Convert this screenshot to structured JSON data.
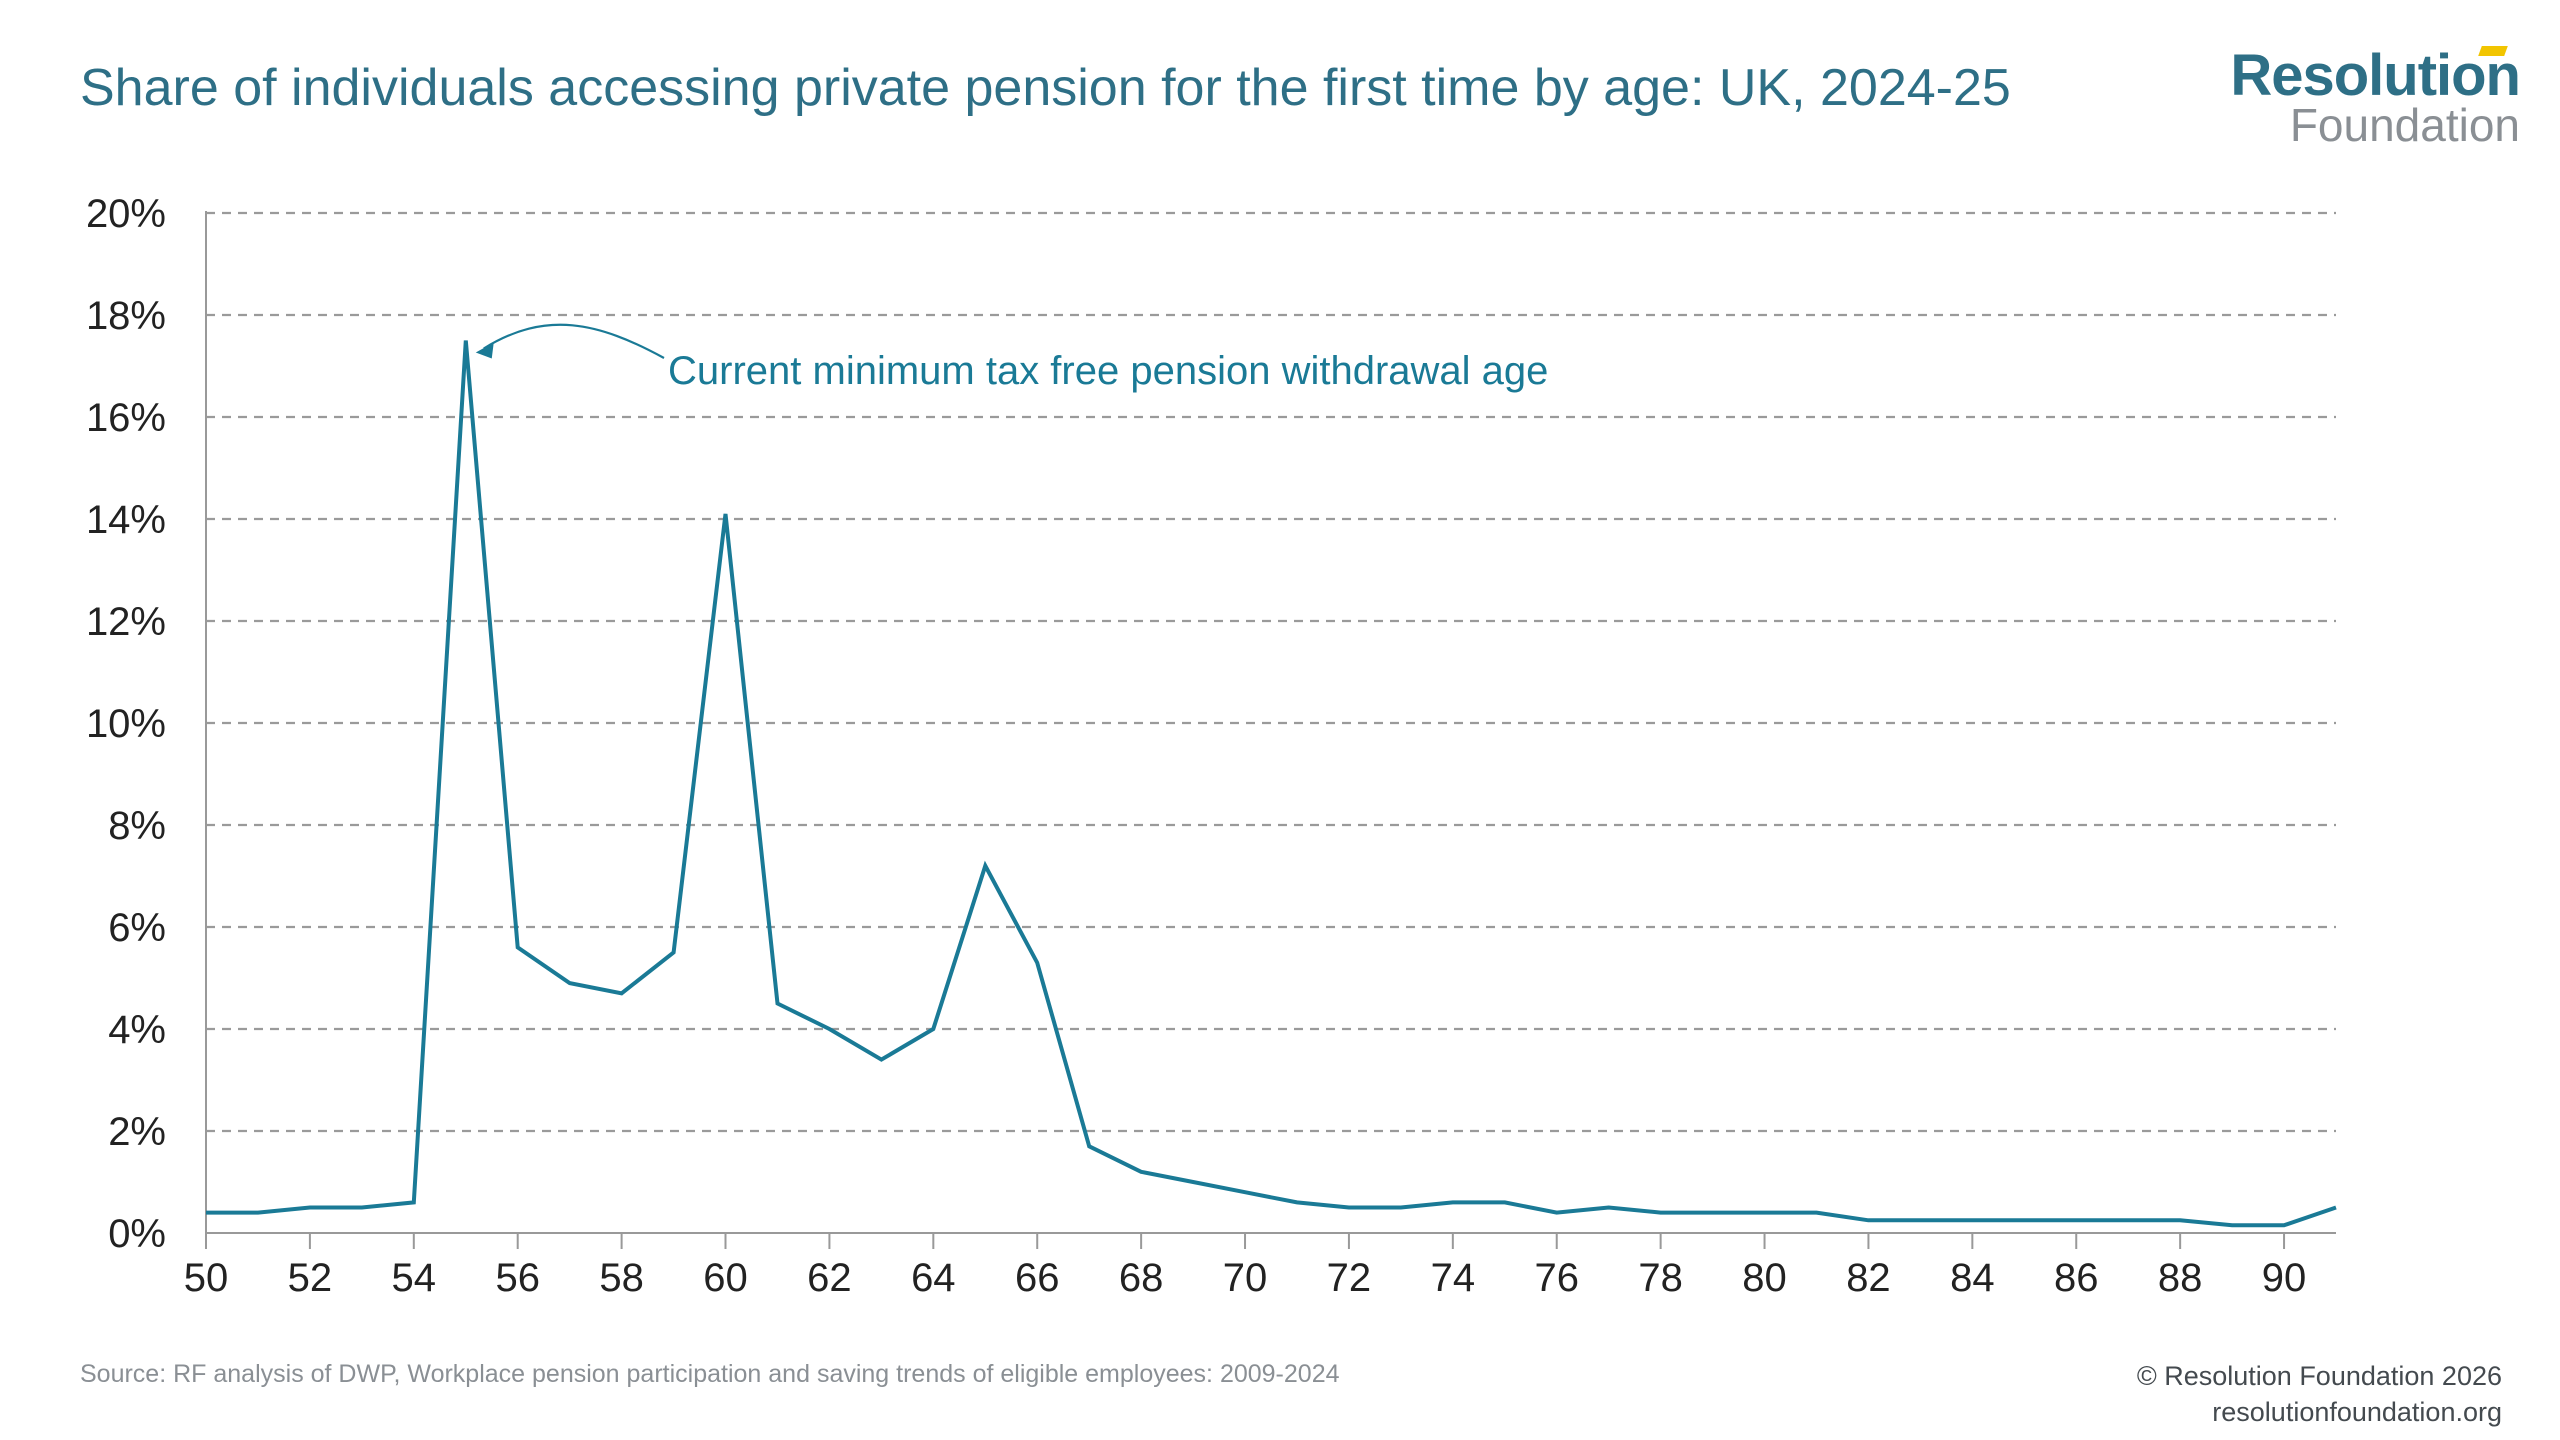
{
  "header": {
    "title": "Share of individuals accessing private pension for the first time by age: UK, 2024-25"
  },
  "logo": {
    "line1": "Resolution",
    "line2": "Foundation"
  },
  "footer": {
    "source": "Source: RF analysis of DWP, Workplace pension participation and saving trends of eligible employees: 2009-2024",
    "copyright": "© Resolution Foundation 2026",
    "website": "resolutionfoundation.org"
  },
  "colors": {
    "line": "#1a7a96",
    "title": "#2e6f86",
    "grid": "#9a9a9a",
    "accent": "#f2c500"
  },
  "chart_data": {
    "type": "line",
    "title": "Share of individuals accessing private pension for the first time by age: UK, 2024-25",
    "xlabel": "",
    "ylabel": "",
    "xlim": [
      50,
      91
    ],
    "ylim": [
      0,
      20
    ],
    "grid": true,
    "x_ticks": [
      "50",
      "52",
      "54",
      "56",
      "58",
      "60",
      "62",
      "64",
      "66",
      "68",
      "70",
      "72",
      "74",
      "76",
      "78",
      "80",
      "82",
      "84",
      "86",
      "88",
      "90"
    ],
    "x_tick_values": [
      50,
      52,
      54,
      56,
      58,
      60,
      62,
      64,
      66,
      68,
      70,
      72,
      74,
      76,
      78,
      80,
      82,
      84,
      86,
      88,
      90
    ],
    "y_ticks": [
      "0%",
      "2%",
      "4%",
      "6%",
      "8%",
      "10%",
      "12%",
      "14%",
      "16%",
      "18%",
      "20%"
    ],
    "y_tick_values": [
      0,
      2,
      4,
      6,
      8,
      10,
      12,
      14,
      16,
      18,
      20
    ],
    "x": [
      50,
      51,
      52,
      53,
      54,
      55,
      56,
      57,
      58,
      59,
      60,
      61,
      62,
      63,
      64,
      65,
      66,
      67,
      68,
      69,
      70,
      71,
      72,
      73,
      74,
      75,
      76,
      77,
      78,
      79,
      80,
      81,
      82,
      83,
      84,
      85,
      86,
      87,
      88,
      89,
      90,
      91
    ],
    "series": [
      {
        "values": [
          0.4,
          0.4,
          0.5,
          0.5,
          0.6,
          17.5,
          5.6,
          4.9,
          4.7,
          5.5,
          14.1,
          4.5,
          4.0,
          3.4,
          4.0,
          7.2,
          5.3,
          1.7,
          1.2,
          1.0,
          0.8,
          0.6,
          0.5,
          0.5,
          0.6,
          0.6,
          0.4,
          0.5,
          0.4,
          0.4,
          0.4,
          0.4,
          0.25,
          0.25,
          0.25,
          0.25,
          0.25,
          0.25,
          0.25,
          0.15,
          0.15,
          0.5
        ]
      }
    ],
    "annotations": [
      {
        "text": "Current minimum tax free pension withdrawal age",
        "x": 55,
        "y": 17.5
      }
    ]
  }
}
